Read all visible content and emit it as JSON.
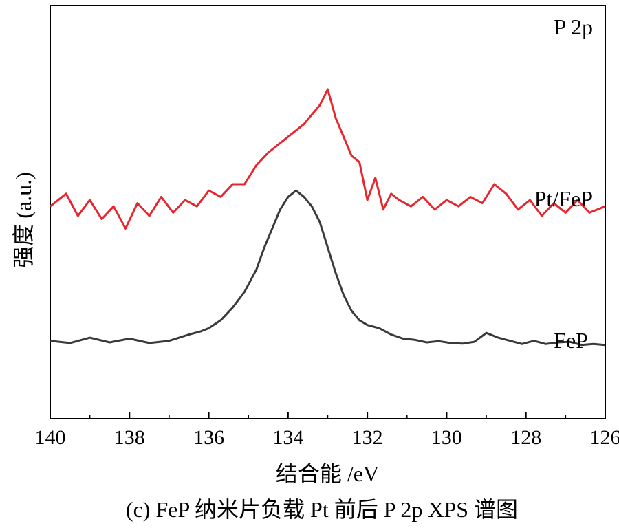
{
  "chart_data": {
    "type": "line",
    "title": "",
    "xlabel": "结合能 /eV",
    "ylabel": "强度 (a.u.)",
    "xlim": [
      140,
      126
    ],
    "x_reversed": true,
    "y_ticks_shown": false,
    "grid": false,
    "x_ticks": [
      140,
      138,
      136,
      134,
      132,
      130,
      128,
      126
    ],
    "x_tick_labels": [
      "140",
      "138",
      "136",
      "134",
      "132",
      "130",
      "128",
      "126"
    ],
    "annotation_top_right": "P 2p",
    "series": [
      {
        "name": "Pt/FeP",
        "color": "#e8262d",
        "x": [
          140.0,
          139.6,
          139.3,
          139.0,
          138.7,
          138.4,
          138.1,
          137.8,
          137.5,
          137.2,
          136.9,
          136.6,
          136.3,
          136.0,
          135.7,
          135.4,
          135.1,
          134.8,
          134.5,
          134.2,
          133.9,
          133.6,
          133.4,
          133.2,
          133.0,
          132.8,
          132.6,
          132.4,
          132.2,
          132.0,
          131.8,
          131.6,
          131.4,
          131.2,
          130.9,
          130.6,
          130.3,
          130.0,
          129.7,
          129.4,
          129.1,
          128.8,
          128.5,
          128.2,
          127.9,
          127.6,
          127.3,
          127.0,
          126.7,
          126.4,
          126.0
        ],
        "y": [
          0.63,
          0.67,
          0.6,
          0.65,
          0.59,
          0.63,
          0.56,
          0.64,
          0.6,
          0.66,
          0.61,
          0.65,
          0.63,
          0.68,
          0.66,
          0.7,
          0.7,
          0.76,
          0.8,
          0.83,
          0.86,
          0.89,
          0.92,
          0.95,
          1.0,
          0.91,
          0.85,
          0.79,
          0.77,
          0.65,
          0.72,
          0.62,
          0.67,
          0.65,
          0.63,
          0.66,
          0.62,
          0.65,
          0.63,
          0.66,
          0.64,
          0.7,
          0.67,
          0.62,
          0.65,
          0.6,
          0.64,
          0.61,
          0.65,
          0.61,
          0.63
        ]
      },
      {
        "name": "FeP",
        "color": "#3a3a3a",
        "x": [
          140.0,
          139.5,
          139.0,
          138.5,
          138.0,
          137.5,
          137.0,
          136.5,
          136.2,
          136.0,
          135.7,
          135.4,
          135.1,
          134.8,
          134.6,
          134.4,
          134.2,
          134.0,
          133.8,
          133.6,
          133.4,
          133.2,
          133.0,
          132.8,
          132.6,
          132.4,
          132.2,
          132.0,
          131.7,
          131.4,
          131.1,
          130.8,
          130.5,
          130.2,
          129.9,
          129.6,
          129.3,
          129.0,
          128.7,
          128.4,
          128.1,
          127.8,
          127.5,
          127.2,
          126.9,
          126.6,
          126.3,
          126.0
        ],
        "y": [
          0.205,
          0.198,
          0.215,
          0.2,
          0.212,
          0.198,
          0.205,
          0.225,
          0.235,
          0.245,
          0.27,
          0.31,
          0.36,
          0.43,
          0.5,
          0.56,
          0.62,
          0.66,
          0.68,
          0.66,
          0.63,
          0.58,
          0.5,
          0.42,
          0.35,
          0.3,
          0.27,
          0.255,
          0.245,
          0.225,
          0.212,
          0.208,
          0.2,
          0.204,
          0.198,
          0.196,
          0.202,
          0.23,
          0.215,
          0.205,
          0.195,
          0.205,
          0.195,
          0.2,
          0.202,
          0.192,
          0.195,
          0.192
        ]
      }
    ],
    "series_labels": [
      "Pt/FeP",
      "FeP"
    ]
  },
  "caption": "(c) FeP 纳米片负载 Pt 前后 P 2p XPS 谱图"
}
